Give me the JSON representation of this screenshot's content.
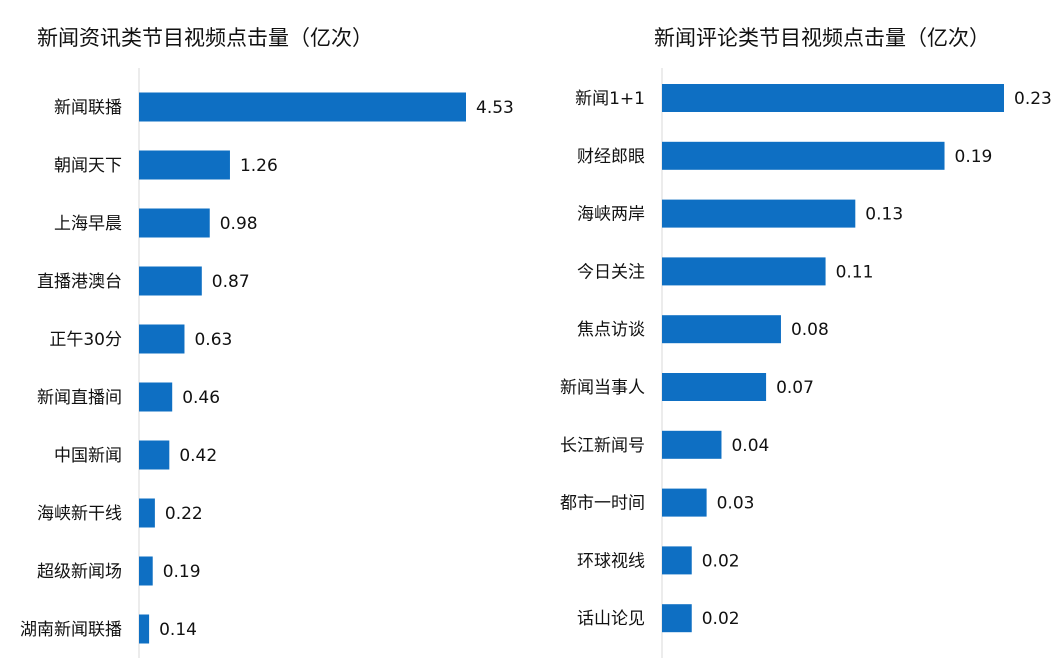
{
  "chart_data": [
    {
      "type": "bar",
      "orientation": "horizontal",
      "title": "新闻资讯类节目视频点击量（亿次）",
      "categories": [
        "新闻联播",
        "朝闻天下",
        "上海早晨",
        "直播港澳台",
        "正午30分",
        "新闻直播间",
        "中国新闻",
        "海峡新干线",
        "超级新闻场",
        "湖南新闻联播"
      ],
      "values": [
        4.53,
        1.26,
        0.98,
        0.87,
        0.63,
        0.46,
        0.42,
        0.22,
        0.19,
        0.14
      ],
      "value_labels": [
        "4.53",
        "1.26",
        "0.98",
        "0.87",
        "0.63",
        "0.46",
        "0.42",
        "0.22",
        "0.19",
        "0.14"
      ],
      "color": "#0E6FC3",
      "grid": false
    },
    {
      "type": "bar",
      "orientation": "horizontal",
      "title": "新闻评论类节目视频点击量（亿次）",
      "categories": [
        "新闻1+1",
        "财经郎眼",
        "海峡两岸",
        "今日关注",
        "焦点访谈",
        "新闻当事人",
        "长江新闻号",
        "都市一时间",
        "环球视线",
        "话山论见"
      ],
      "values": [
        0.23,
        0.19,
        0.13,
        0.11,
        0.08,
        0.07,
        0.04,
        0.03,
        0.02,
        0.02
      ],
      "value_labels": [
        "0.23",
        "0.19",
        "0.13",
        "0.11",
        "0.08",
        "0.07",
        "0.04",
        "0.03",
        "0.02",
        "0.02"
      ],
      "color": "#0E6FC3",
      "grid": false
    }
  ]
}
